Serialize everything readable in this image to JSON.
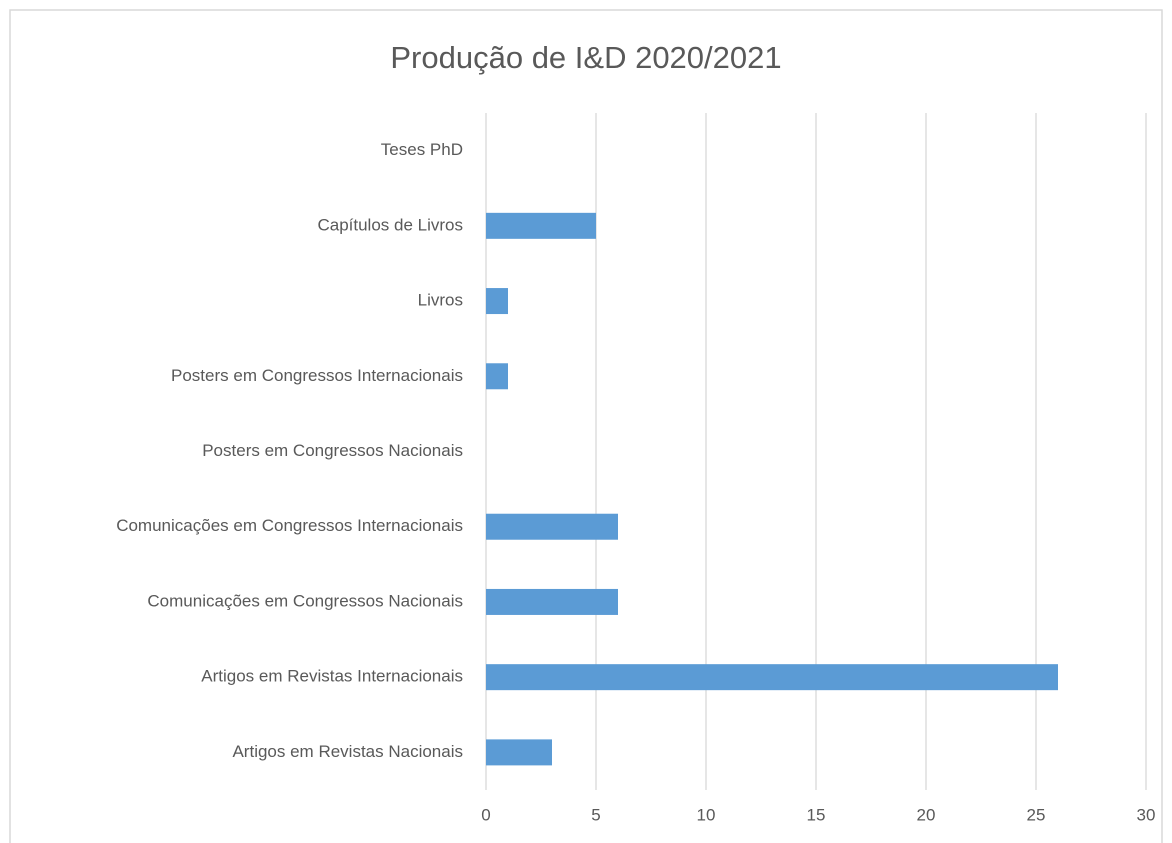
{
  "chart_data": {
    "type": "bar",
    "orientation": "horizontal",
    "title": "Produção de I&D 2020/2021",
    "categories": [
      "Teses PhD",
      "Capítulos de Livros",
      "Livros",
      "Posters em Congressos Internacionais",
      "Posters em Congressos Nacionais",
      "Comunicações em Congressos Internacionais",
      "Comunicações em Congressos Nacionais",
      "Artigos em Revistas Internacionais",
      "Artigos em Revistas Nacionais"
    ],
    "values": [
      0,
      5,
      1,
      1,
      0,
      6,
      6,
      26,
      3
    ],
    "color": "#5b9bd5",
    "xlim": [
      0,
      30
    ],
    "xticks": [
      0,
      5,
      10,
      15,
      20,
      25,
      30
    ],
    "grid": true
  }
}
